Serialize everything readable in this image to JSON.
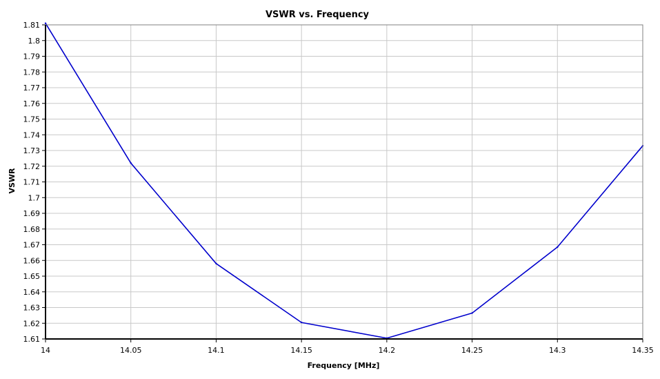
{
  "chart_data": {
    "type": "line",
    "title": "VSWR vs. Frequency",
    "xlabel": "Frequency [MHz]",
    "ylabel": "VSWR",
    "xlim": [
      14,
      14.35
    ],
    "ylim": [
      1.61,
      1.81
    ],
    "x_ticks": [
      "14",
      "14.05",
      "14.1",
      "14.15",
      "14.2",
      "14.25",
      "14.3",
      "14.35"
    ],
    "y_ticks": [
      "1.81",
      "1.8",
      "1.79",
      "1.78",
      "1.77",
      "1.76",
      "1.75",
      "1.74",
      "1.73",
      "1.72",
      "1.71",
      "1.7",
      "1.69",
      "1.68",
      "1.67",
      "1.66",
      "1.65",
      "1.64",
      "1.63",
      "1.62",
      "1.61"
    ],
    "grid": true,
    "legend": "none",
    "series": [
      {
        "color": "#0000cc",
        "x": [
          14,
          14.05,
          14.1,
          14.15,
          14.2,
          14.25,
          14.3,
          14.35
        ],
        "y": [
          1.811,
          1.722,
          1.658,
          1.6205,
          1.6105,
          1.6265,
          1.6685,
          1.733
        ]
      }
    ]
  }
}
